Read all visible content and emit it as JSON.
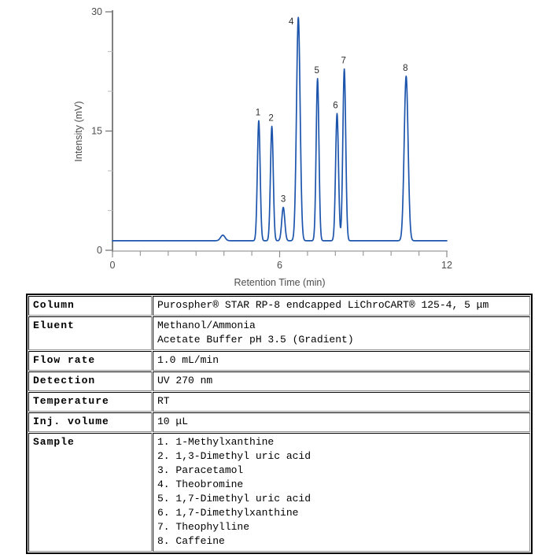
{
  "chart_data": {
    "type": "line",
    "title": "",
    "xlabel": "Retention Time (min)",
    "ylabel": "Intensity (mV)",
    "xlim": [
      0,
      12
    ],
    "ylim": [
      0,
      30
    ],
    "x_ticks_labeled": [
      0,
      6,
      12
    ],
    "x_minor_tick_step": 1,
    "y_ticks_labeled": [
      0,
      15,
      30
    ],
    "y_minor_ticks": [
      5,
      10,
      20,
      25
    ],
    "grid": false,
    "legend": "none",
    "baseline_mV": 1.2,
    "system_peak": {
      "rt_min": 3.96,
      "apex_mV": 1.9,
      "sigma_min": 0.08
    },
    "peaks": [
      {
        "n": "1",
        "rt_min": 5.25,
        "apex_mV": 16.3,
        "sigma_min": 0.05,
        "label_dx": -1,
        "label_dy": -7
      },
      {
        "n": "2",
        "rt_min": 5.72,
        "apex_mV": 15.6,
        "sigma_min": 0.05,
        "label_dx": -1,
        "label_dy": -7
      },
      {
        "n": "3",
        "rt_min": 6.13,
        "apex_mV": 5.4,
        "sigma_min": 0.055,
        "label_dx": 0,
        "label_dy": -7
      },
      {
        "n": "4",
        "rt_min": 6.67,
        "apex_mV": 29.3,
        "sigma_min": 0.065,
        "label_dx": -9,
        "label_dy": 9
      },
      {
        "n": "5",
        "rt_min": 7.36,
        "apex_mV": 21.6,
        "sigma_min": 0.05,
        "label_dx": -1,
        "label_dy": -7
      },
      {
        "n": "6",
        "rt_min": 8.06,
        "apex_mV": 17.2,
        "sigma_min": 0.052,
        "label_dx": -2,
        "label_dy": -7
      },
      {
        "n": "7",
        "rt_min": 8.32,
        "apex_mV": 22.8,
        "sigma_min": 0.052,
        "label_dx": -1,
        "label_dy": -7
      },
      {
        "n": "8",
        "rt_min": 10.54,
        "apex_mV": 21.9,
        "sigma_min": 0.07,
        "label_dx": -1,
        "label_dy": -7
      }
    ],
    "colors": {
      "curve": "#1d55ad",
      "y_axis_line": "#3c3c3c",
      "x_axis_line": "#9c9c9c",
      "minor_tick": "#c4c4c4",
      "axis_label": "#4d4d4d",
      "peak_label": "#2b2b2b"
    }
  },
  "table": {
    "rows": [
      {
        "label": "Column",
        "lines": [
          "Purospher® STAR RP-8 endcapped LiChroCART® 125-4, 5 μm"
        ]
      },
      {
        "label": "Eluent",
        "lines": [
          "Methanol/Ammonia",
          "Acetate Buffer pH 3.5 (Gradient)"
        ]
      },
      {
        "label": "Flow rate",
        "lines": [
          "1.0 mL/min"
        ]
      },
      {
        "label": "Detection",
        "lines": [
          "UV 270 nm"
        ]
      },
      {
        "label": "Temperature",
        "lines": [
          "RT"
        ]
      },
      {
        "label": "Inj. volume",
        "lines": [
          "10 μL"
        ]
      },
      {
        "label": "Sample",
        "lines": [
          "1. 1-Methylxanthine",
          "2. 1,3-Dimethyl uric acid",
          "3. Paracetamol",
          "4. Theobromine",
          "5. 1,7-Dimethyl uric acid",
          "6. 1,7-Dimethylxanthine",
          "7. Theophylline",
          "8. Caffeine"
        ]
      }
    ]
  }
}
